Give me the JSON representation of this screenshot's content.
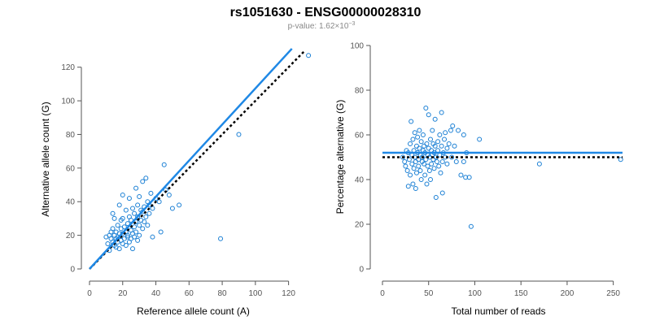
{
  "header": {
    "title": "rs1051630 - ENSG00000028310",
    "subtitle": "p-value: 1.62×10",
    "subtitle_exp": "−3"
  },
  "colors": {
    "points": "#1a7fd4",
    "fit_line": "#1f88e5",
    "reference_line": "#000000",
    "axis": "#555555"
  },
  "chart_data": [
    {
      "type": "scatter",
      "title": "",
      "xlabel": "Reference allele count (A)",
      "ylabel": "Alternative allele count (G)",
      "xlim": [
        0,
        130
      ],
      "ylim": [
        0,
        130
      ],
      "xticks": [
        0,
        20,
        40,
        60,
        80,
        100,
        120
      ],
      "yticks": [
        0,
        20,
        40,
        60,
        80,
        100,
        120
      ],
      "fit_line": [
        [
          0,
          0
        ],
        [
          122,
          131
        ]
      ],
      "reference_line": [
        [
          0,
          0
        ],
        [
          130,
          130
        ]
      ],
      "points": [
        [
          10,
          19
        ],
        [
          11,
          15
        ],
        [
          12,
          11
        ],
        [
          12,
          20
        ],
        [
          13,
          18
        ],
        [
          13,
          22
        ],
        [
          14,
          16
        ],
        [
          14,
          24
        ],
        [
          14,
          33
        ],
        [
          15,
          14
        ],
        [
          15,
          20
        ],
        [
          15,
          30
        ],
        [
          16,
          18
        ],
        [
          16,
          22
        ],
        [
          16,
          13
        ],
        [
          17,
          26
        ],
        [
          17,
          16
        ],
        [
          17,
          19
        ],
        [
          18,
          21
        ],
        [
          18,
          12
        ],
        [
          18,
          38
        ],
        [
          19,
          17
        ],
        [
          19,
          24
        ],
        [
          19,
          29
        ],
        [
          20,
          15
        ],
        [
          20,
          21
        ],
        [
          20,
          30
        ],
        [
          20,
          44
        ],
        [
          21,
          18
        ],
        [
          21,
          25
        ],
        [
          22,
          14
        ],
        [
          22,
          22
        ],
        [
          22,
          35
        ],
        [
          23,
          20
        ],
        [
          23,
          19
        ],
        [
          23,
          27
        ],
        [
          24,
          16
        ],
        [
          24,
          31
        ],
        [
          24,
          42
        ],
        [
          25,
          23
        ],
        [
          25,
          18
        ],
        [
          25,
          29
        ],
        [
          26,
          21
        ],
        [
          26,
          36
        ],
        [
          26,
          12
        ],
        [
          27,
          25
        ],
        [
          27,
          19
        ],
        [
          27,
          33
        ],
        [
          28,
          28
        ],
        [
          28,
          22
        ],
        [
          28,
          48
        ],
        [
          29,
          31
        ],
        [
          29,
          17
        ],
        [
          29,
          38
        ],
        [
          30,
          26
        ],
        [
          30,
          43
        ],
        [
          30,
          20
        ],
        [
          31,
          29
        ],
        [
          31,
          35
        ],
        [
          32,
          34
        ],
        [
          32,
          24
        ],
        [
          32,
          52
        ],
        [
          33,
          37
        ],
        [
          33,
          28
        ],
        [
          34,
          31
        ],
        [
          34,
          54
        ],
        [
          35,
          40
        ],
        [
          35,
          26
        ],
        [
          36,
          38
        ],
        [
          36,
          33
        ],
        [
          37,
          45
        ],
        [
          38,
          19
        ],
        [
          38,
          36
        ],
        [
          40,
          42
        ],
        [
          42,
          40
        ],
        [
          43,
          22
        ],
        [
          45,
          62
        ],
        [
          46,
          47
        ],
        [
          48,
          44
        ],
        [
          50,
          36
        ],
        [
          54,
          38
        ],
        [
          79,
          18
        ],
        [
          90,
          80
        ],
        [
          132,
          127
        ]
      ]
    },
    {
      "type": "scatter",
      "title": "",
      "xlabel": "Total number of reads",
      "ylabel": "Percentage alternative (G)",
      "xlim": [
        0,
        260
      ],
      "ylim": [
        0,
        100
      ],
      "xticks": [
        0,
        50,
        100,
        150,
        200,
        250
      ],
      "yticks": [
        0,
        20,
        40,
        60,
        80,
        100
      ],
      "fit_line_y": 52,
      "reference_line_y": 50,
      "points": [
        [
          22,
          50
        ],
        [
          24,
          48
        ],
        [
          25,
          46
        ],
        [
          26,
          53
        ],
        [
          27,
          44
        ],
        [
          28,
          52
        ],
        [
          28,
          37
        ],
        [
          29,
          49
        ],
        [
          30,
          56
        ],
        [
          30,
          42
        ],
        [
          31,
          66
        ],
        [
          32,
          51
        ],
        [
          32,
          47
        ],
        [
          33,
          58
        ],
        [
          33,
          38
        ],
        [
          34,
          53
        ],
        [
          34,
          45
        ],
        [
          35,
          50
        ],
        [
          35,
          61
        ],
        [
          36,
          48
        ],
        [
          36,
          36
        ],
        [
          37,
          55
        ],
        [
          37,
          43
        ],
        [
          38,
          52
        ],
        [
          38,
          59
        ],
        [
          39,
          49
        ],
        [
          39,
          46
        ],
        [
          40,
          54
        ],
        [
          40,
          62
        ],
        [
          41,
          51
        ],
        [
          41,
          44
        ],
        [
          42,
          57
        ],
        [
          42,
          40
        ],
        [
          43,
          50
        ],
        [
          43,
          48
        ],
        [
          44,
          53
        ],
        [
          44,
          60
        ],
        [
          45,
          47
        ],
        [
          45,
          55
        ],
        [
          46,
          52
        ],
        [
          46,
          42
        ],
        [
          47,
          72
        ],
        [
          47,
          49
        ],
        [
          48,
          56
        ],
        [
          48,
          38
        ],
        [
          49,
          51
        ],
        [
          49,
          46
        ],
        [
          50,
          54
        ],
        [
          50,
          69
        ],
        [
          51,
          50
        ],
        [
          51,
          44
        ],
        [
          52,
          58
        ],
        [
          52,
          40
        ],
        [
          53,
          53
        ],
        [
          53,
          47
        ],
        [
          54,
          51
        ],
        [
          54,
          62
        ],
        [
          55,
          49
        ],
        [
          55,
          56
        ],
        [
          56,
          52
        ],
        [
          56,
          45
        ],
        [
          57,
          67
        ],
        [
          57,
          55
        ],
        [
          58,
          32
        ],
        [
          58,
          50
        ],
        [
          59,
          48
        ],
        [
          60,
          57
        ],
        [
          60,
          53
        ],
        [
          61,
          46
        ],
        [
          62,
          60
        ],
        [
          62,
          51
        ],
        [
          63,
          43
        ],
        [
          64,
          55
        ],
        [
          64,
          70
        ],
        [
          65,
          48
        ],
        [
          65,
          34
        ],
        [
          66,
          52
        ],
        [
          67,
          58
        ],
        [
          68,
          50
        ],
        [
          68,
          61
        ],
        [
          70,
          54
        ],
        [
          70,
          47
        ],
        [
          72,
          56
        ],
        [
          74,
          62
        ],
        [
          75,
          50
        ],
        [
          76,
          64
        ],
        [
          78,
          55
        ],
        [
          80,
          48
        ],
        [
          82,
          62
        ],
        [
          85,
          42
        ],
        [
          88,
          48
        ],
        [
          88,
          60
        ],
        [
          90,
          41
        ],
        [
          91,
          52
        ],
        [
          94,
          41
        ],
        [
          96,
          19
        ],
        [
          105,
          58
        ],
        [
          170,
          47
        ],
        [
          258,
          49
        ]
      ]
    }
  ]
}
